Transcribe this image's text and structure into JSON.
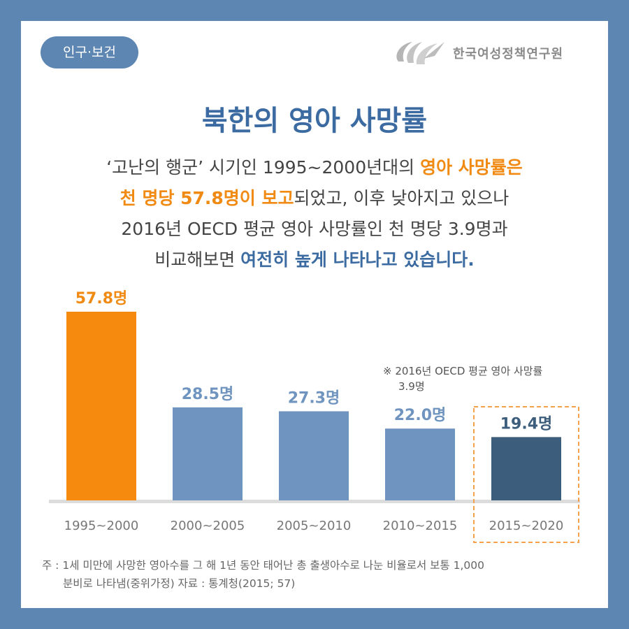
{
  "badge": "인구·보건",
  "logo_text": "한국여성정책연구원",
  "title": "북한의 영아 사망률",
  "description": {
    "line1_a": "‘고난의 행군’ 시기인 1995~2000년대의 ",
    "line1_b": "영아 사망률은",
    "line2_a": "천 명당 57.8명이 보고",
    "line2_b": "되었고, 이후 낮아지고 있으나",
    "line3": "2016년 OECD 평균 영아 사망률인 천 명당 3.9명과",
    "line4_a": "비교해보면 ",
    "line4_b": "여전히 높게 나타나고 있습니다."
  },
  "chart_data": {
    "type": "bar",
    "categories": [
      "1995~2000",
      "2000~2005",
      "2005~2010",
      "2010~2015",
      "2015~2020"
    ],
    "values": [
      57.8,
      28.5,
      27.3,
      22.0,
      19.4
    ],
    "value_labels": [
      "57.8명",
      "28.5명",
      "27.3명",
      "22.0명",
      "19.4명"
    ],
    "ylim": [
      0,
      57.8
    ],
    "highlighted_category": "2015~2020",
    "colors": {
      "first": "#f58a0e",
      "default": "#6f94bf",
      "highlight": "#3d5d7c",
      "first_label": "#f08a12",
      "default_label": "#6f94bf",
      "highlight_label": "#3d5d7c",
      "highlight_box": "#f5a04a"
    }
  },
  "annotation": {
    "line1": "※ 2016년 OECD 평균 영아 사망률",
    "line2": "3.9명"
  },
  "footnote": {
    "line1": "주 : 1세 미만에 사망한 영아수를 그 해 1년 동안 태어난 총 출생아수로 나눈 비율로서 보통 1,000",
    "line2": "분비로 나타냄(중위가정)   자료 : 통계청(2015; 57)"
  }
}
